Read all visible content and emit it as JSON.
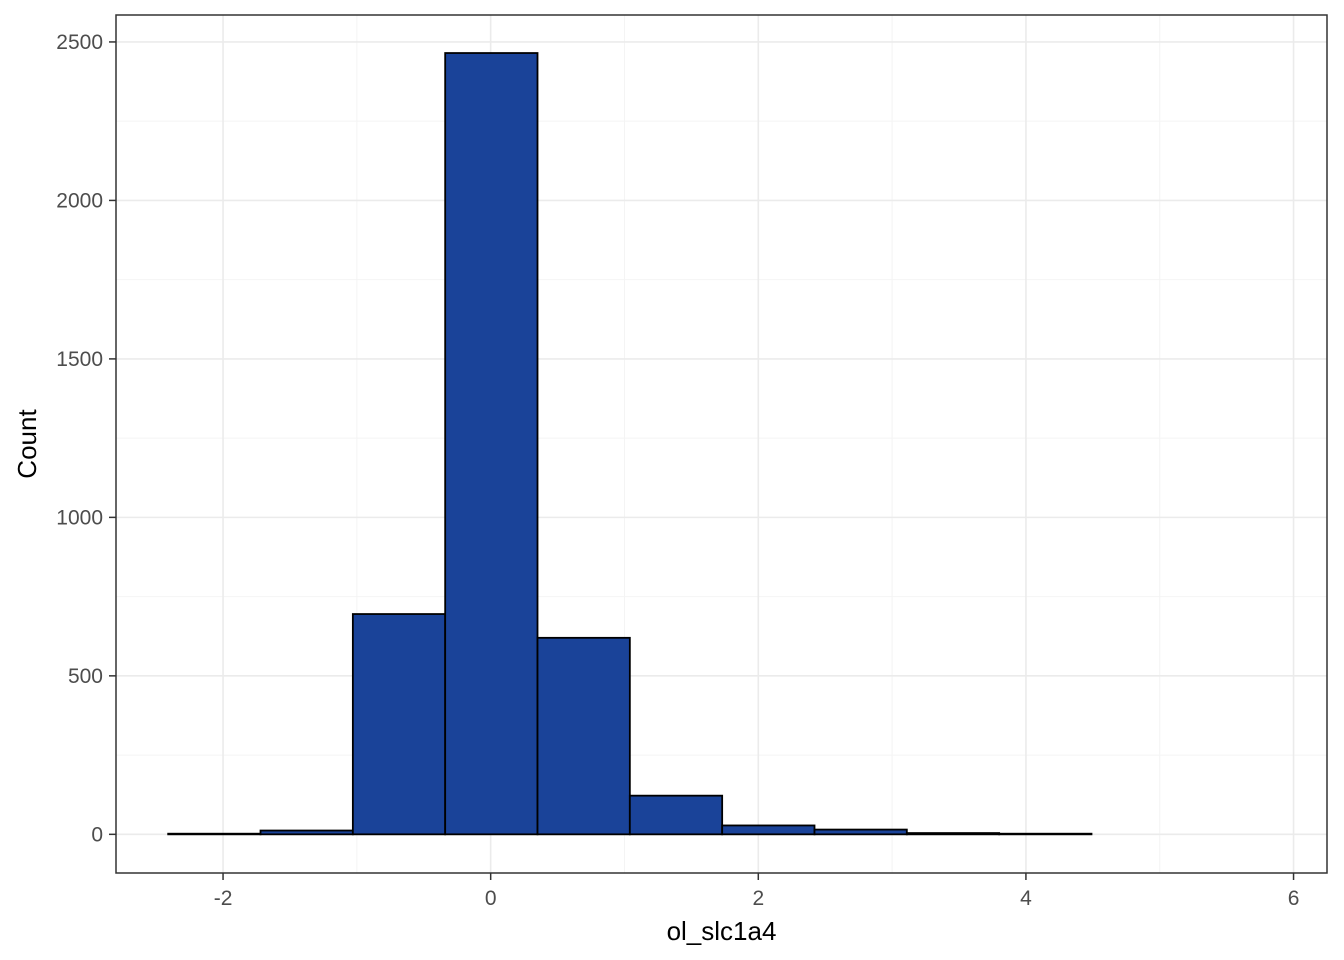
{
  "chart_data": {
    "type": "bar",
    "title": "",
    "xlabel": "ol_slc1a4",
    "ylabel": "Count",
    "xlim": [
      -2.8,
      6.25
    ],
    "ylim": [
      -122,
      2585
    ],
    "x_ticks": [
      -2,
      0,
      2,
      4,
      6
    ],
    "x_tick_labels": [
      "-2",
      "0",
      "2",
      "4",
      "6"
    ],
    "y_ticks": [
      0,
      500,
      1000,
      1500,
      2000,
      2500
    ],
    "y_tick_labels": [
      "0",
      "500",
      "1000",
      "1500",
      "2000",
      "2500"
    ],
    "bin_edges": [
      -2.41,
      -1.72,
      -1.03,
      -0.34,
      0.35,
      1.04,
      1.73,
      2.42,
      3.11,
      3.8,
      4.49,
      5.18,
      5.87
    ],
    "values": [
      2,
      12,
      695,
      2465,
      620,
      122,
      28,
      15,
      4,
      2,
      0,
      0
    ],
    "grid": true,
    "colors": {
      "bar_fill": "#1a4399",
      "bar_outline": "#000000",
      "grid": "#ebebeb",
      "panel_border": "#333333"
    }
  }
}
